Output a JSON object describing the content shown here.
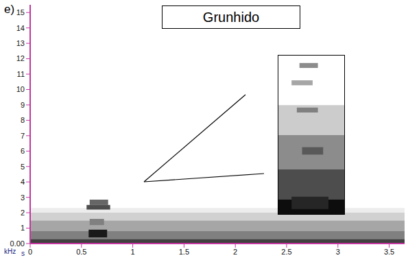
{
  "chart_data": {
    "type": "spectrogram",
    "panel": "e)",
    "title": "Grunhido",
    "x_label": "s",
    "y_label": "kHz",
    "xlim": [
      0,
      3.65
    ],
    "xticks": [
      0,
      0.5,
      1,
      1.5,
      2,
      2.5,
      3,
      3.5
    ],
    "ylim": [
      0,
      15.5
    ],
    "yticks": [
      {
        "value": 0,
        "label": "0.00"
      },
      1,
      2,
      3,
      4,
      5,
      6,
      7,
      8,
      9,
      10,
      11,
      12,
      13,
      14,
      15
    ],
    "grid": false,
    "cells": [
      {
        "x0": 0,
        "x1": 3.65,
        "y0": 0,
        "y1": 0.3,
        "intensity": 0.75
      },
      {
        "x0": 0,
        "x1": 3.65,
        "y0": 0.3,
        "y1": 0.8,
        "intensity": 0.5
      },
      {
        "x0": 0,
        "x1": 3.65,
        "y0": 0.8,
        "y1": 1.5,
        "intensity": 0.35
      },
      {
        "x0": 0,
        "x1": 3.65,
        "y0": 1.5,
        "y1": 2.0,
        "intensity": 0.18
      },
      {
        "x0": 0,
        "x1": 3.65,
        "y0": 2.0,
        "y1": 2.3,
        "intensity": 0.07
      },
      {
        "x0": 0.57,
        "x1": 0.75,
        "y0": 0.4,
        "y1": 0.9,
        "intensity": 0.9
      },
      {
        "x0": 0.58,
        "x1": 0.72,
        "y0": 1.2,
        "y1": 1.6,
        "intensity": 0.5
      },
      {
        "x0": 0.55,
        "x1": 0.78,
        "y0": 2.2,
        "y1": 2.5,
        "intensity": 0.7
      },
      {
        "x0": 0.58,
        "x1": 0.76,
        "y0": 2.5,
        "y1": 2.85,
        "intensity": 0.6
      }
    ],
    "inset": {
      "xlim": [
        0.55,
        0.8
      ],
      "ylim": [
        0,
        3.2
      ],
      "tick_labels": false,
      "cells": [
        {
          "x0": 0.55,
          "x1": 0.8,
          "y0": 0,
          "y1": 0.3,
          "intensity": 0.95
        },
        {
          "x0": 0.55,
          "x1": 0.8,
          "y0": 0.3,
          "y1": 0.9,
          "intensity": 0.7
        },
        {
          "x0": 0.55,
          "x1": 0.8,
          "y0": 0.9,
          "y1": 1.6,
          "intensity": 0.45
        },
        {
          "x0": 0.55,
          "x1": 0.8,
          "y0": 1.6,
          "y1": 2.2,
          "intensity": 0.2
        },
        {
          "x0": 0.6,
          "x1": 0.74,
          "y0": 0.1,
          "y1": 0.35,
          "intensity": 0.85
        },
        {
          "x0": 0.64,
          "x1": 0.72,
          "y0": 1.2,
          "y1": 1.35,
          "intensity": 0.65
        },
        {
          "x0": 0.62,
          "x1": 0.7,
          "y0": 2.05,
          "y1": 2.15,
          "intensity": 0.5
        },
        {
          "x0": 0.6,
          "x1": 0.68,
          "y0": 2.6,
          "y1": 2.7,
          "intensity": 0.35
        },
        {
          "x0": 0.63,
          "x1": 0.7,
          "y0": 2.95,
          "y1": 3.05,
          "intensity": 0.45
        }
      ]
    }
  }
}
